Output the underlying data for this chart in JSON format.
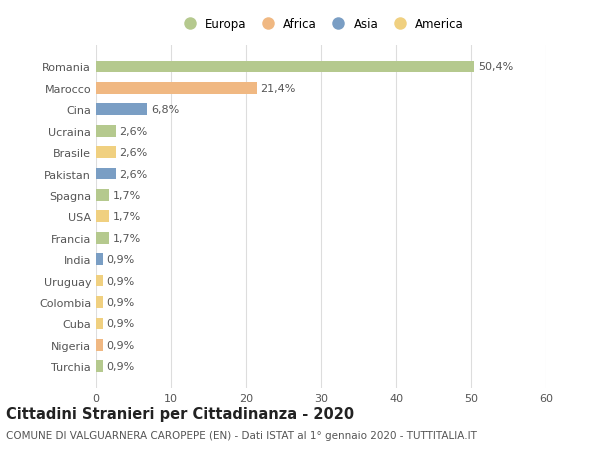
{
  "countries": [
    "Romania",
    "Marocco",
    "Cina",
    "Ucraina",
    "Brasile",
    "Pakistan",
    "Spagna",
    "USA",
    "Francia",
    "India",
    "Uruguay",
    "Colombia",
    "Cuba",
    "Nigeria",
    "Turchia"
  ],
  "values": [
    50.4,
    21.4,
    6.8,
    2.6,
    2.6,
    2.6,
    1.7,
    1.7,
    1.7,
    0.9,
    0.9,
    0.9,
    0.9,
    0.9,
    0.9
  ],
  "labels": [
    "50,4%",
    "21,4%",
    "6,8%",
    "2,6%",
    "2,6%",
    "2,6%",
    "1,7%",
    "1,7%",
    "1,7%",
    "0,9%",
    "0,9%",
    "0,9%",
    "0,9%",
    "0,9%",
    "0,9%"
  ],
  "continents": [
    "Europa",
    "Africa",
    "Asia",
    "Europa",
    "America",
    "Asia",
    "Europa",
    "America",
    "Europa",
    "Asia",
    "America",
    "America",
    "America",
    "Africa",
    "Europa"
  ],
  "continent_colors": {
    "Europa": "#b5c98e",
    "Africa": "#f0b882",
    "Asia": "#7a9ec4",
    "America": "#f0d080"
  },
  "legend_order": [
    "Europa",
    "Africa",
    "Asia",
    "America"
  ],
  "xlim": [
    0,
    60
  ],
  "xticks": [
    0,
    10,
    20,
    30,
    40,
    50,
    60
  ],
  "title": "Cittadini Stranieri per Cittadinanza - 2020",
  "subtitle": "COMUNE DI VALGUARNERA CAROPEPE (EN) - Dati ISTAT al 1° gennaio 2020 - TUTTITALIA.IT",
  "bg_color": "#ffffff",
  "grid_color": "#dddddd",
  "bar_height": 0.55,
  "label_fontsize": 8,
  "tick_fontsize": 8,
  "title_fontsize": 10.5,
  "subtitle_fontsize": 7.5
}
